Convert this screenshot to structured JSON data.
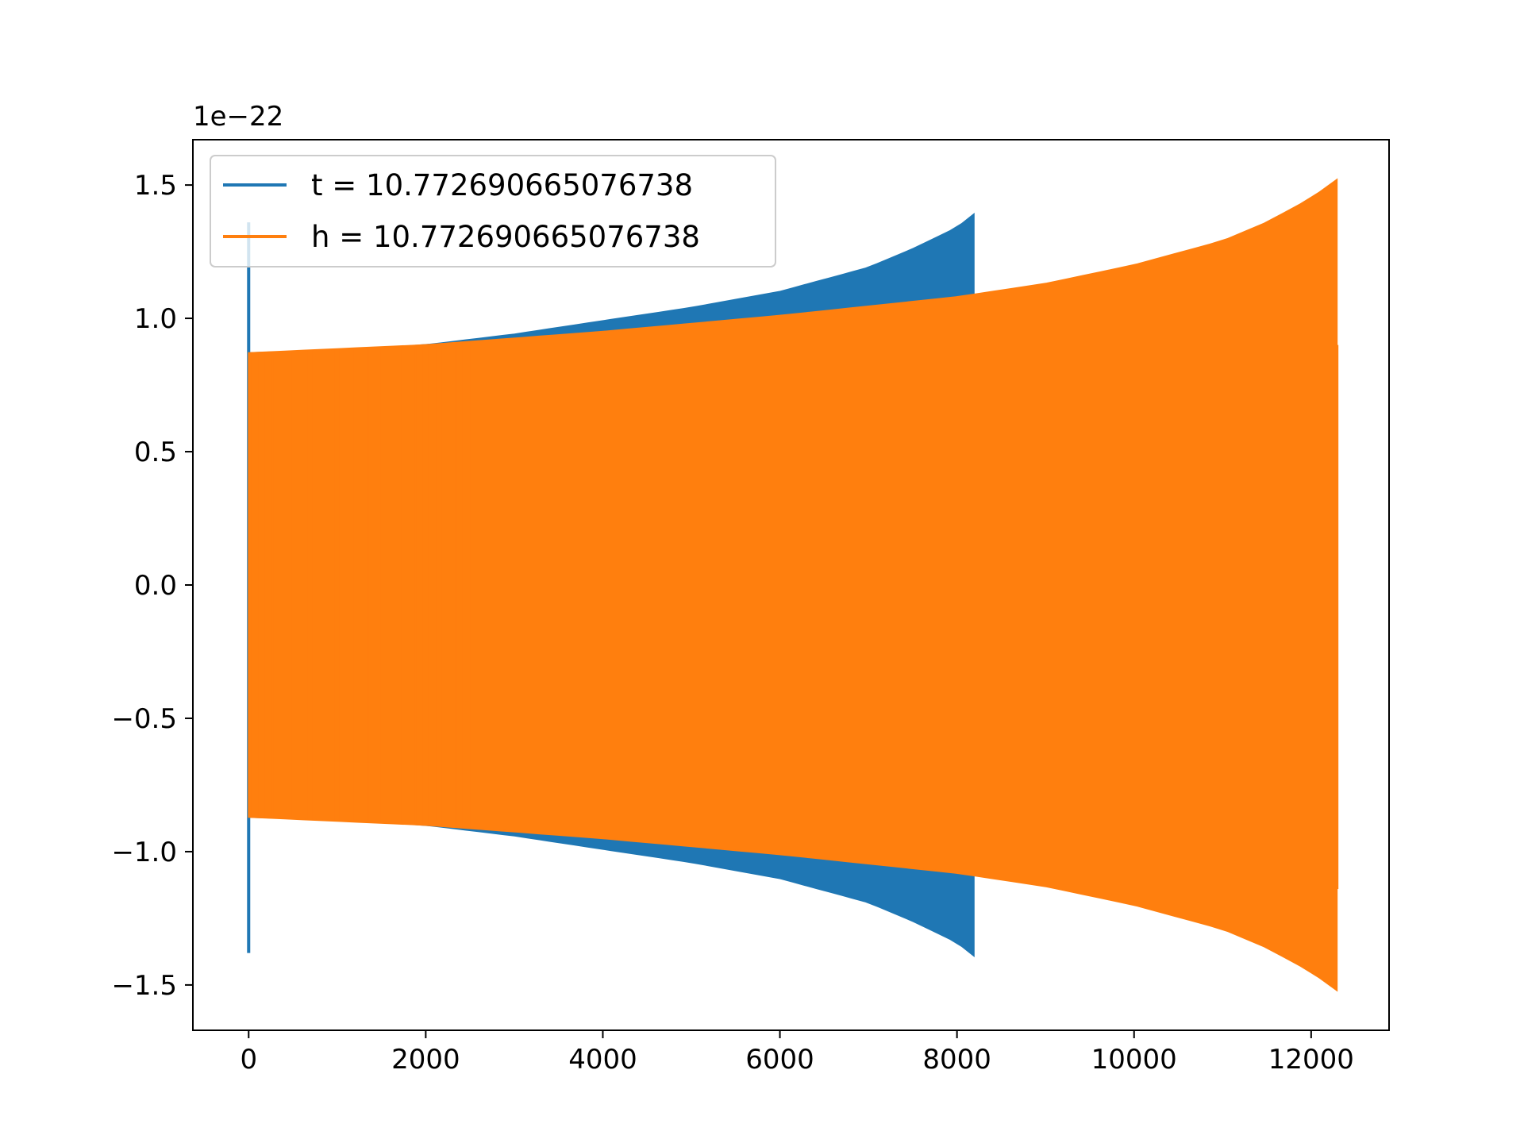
{
  "chart_data": {
    "type": "line",
    "title": "",
    "xlabel": "",
    "ylabel": "",
    "y_offset_label": "1e−22",
    "xlim": [
      -630,
      12880
    ],
    "ylim": [
      -1.67,
      1.67
    ],
    "x_ticks": [
      0,
      2000,
      4000,
      6000,
      8000,
      10000,
      12000
    ],
    "x_tick_labels": [
      "0",
      "2000",
      "4000",
      "6000",
      "8000",
      "10000",
      "12000"
    ],
    "y_ticks": [
      1.5,
      1.0,
      0.5,
      0.0,
      -0.5,
      -1.0,
      -1.5
    ],
    "y_tick_labels": [
      "1.5",
      "1.0",
      "0.5",
      "0.0",
      "−0.5",
      "−1.0",
      "−1.5"
    ],
    "grid": false,
    "legend_position": "top-left",
    "series": [
      {
        "name": "t = 10.772690665076738",
        "color": "#1f77b4",
        "x_start": 0,
        "x_end": 8190,
        "envelope": {
          "x": [
            0,
            1000,
            2000,
            3000,
            4000,
            5000,
            6000,
            7000,
            7500,
            8000,
            8190
          ],
          "amplitude": [
            0.87,
            0.88,
            0.9,
            0.94,
            0.99,
            1.04,
            1.1,
            1.19,
            1.26,
            1.34,
            1.39
          ]
        },
        "initial_spike": {
          "x": 0,
          "max": 1.36,
          "min": -1.38
        }
      },
      {
        "name": "h = 10.772690665076738",
        "color": "#ff7f0e",
        "x_start": 0,
        "x_end": 12290,
        "envelope": {
          "x": [
            0,
            2000,
            4000,
            6000,
            8000,
            9000,
            10000,
            11000,
            11500,
            12000,
            12290
          ],
          "amplitude": [
            0.87,
            0.9,
            0.95,
            1.01,
            1.08,
            1.13,
            1.2,
            1.29,
            1.36,
            1.45,
            1.52
          ]
        },
        "final_value": 0.9
      }
    ]
  }
}
